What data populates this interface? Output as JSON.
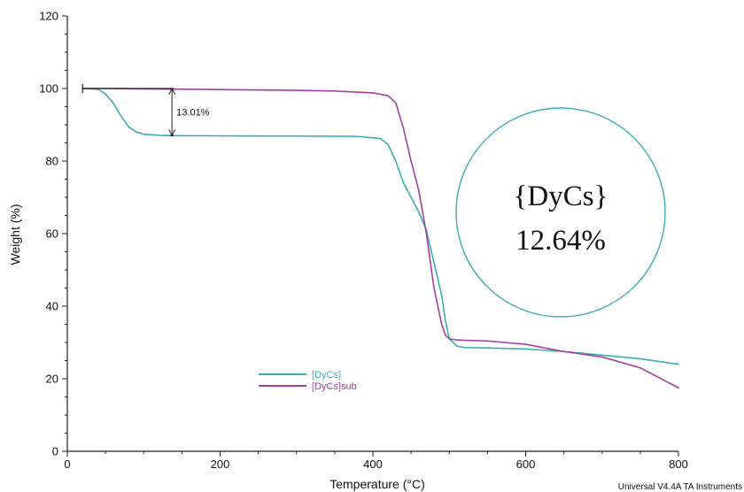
{
  "chart_data": {
    "type": "line",
    "title": "",
    "xlabel": "Temperature (°C)",
    "ylabel": "Weight (%)",
    "xlim": [
      0,
      800
    ],
    "ylim": [
      0,
      120
    ],
    "xticks": [
      0,
      200,
      400,
      600,
      800
    ],
    "yticks": [
      0,
      20,
      40,
      60,
      80,
      100,
      120
    ],
    "grid": false,
    "legend_position": "lower-left",
    "series": [
      {
        "name": "[DyCs]",
        "color": "#3aadb0",
        "x": [
          20,
          40,
          50,
          60,
          70,
          80,
          90,
          100,
          120,
          140,
          200,
          300,
          380,
          410,
          420,
          430,
          440,
          450,
          460,
          470,
          480,
          490,
          495,
          500,
          510,
          520,
          550,
          600,
          650,
          700,
          750,
          800
        ],
        "y": [
          100,
          99.8,
          98.5,
          96,
          92.5,
          89.5,
          88,
          87.4,
          87.1,
          87,
          86.95,
          86.9,
          86.8,
          86.2,
          84.5,
          80,
          74,
          70,
          66,
          61,
          52,
          43,
          36,
          31,
          29,
          28.6,
          28.5,
          28.2,
          27.5,
          26.5,
          25.5,
          24
        ]
      },
      {
        "name": "[DyCs]sub",
        "color": "#a33ea8",
        "x": [
          20,
          50,
          100,
          150,
          200,
          300,
          350,
          400,
          420,
          430,
          440,
          450,
          460,
          470,
          480,
          490,
          495,
          500,
          510,
          520,
          550,
          600,
          650,
          700,
          750,
          800
        ],
        "y": [
          100,
          100,
          99.9,
          99.8,
          99.7,
          99.5,
          99.3,
          98.8,
          98,
          96,
          89,
          80,
          72,
          60,
          45,
          35,
          32,
          31,
          30.7,
          30.6,
          30.4,
          29.5,
          27.5,
          26,
          23,
          17.5
        ]
      }
    ],
    "annotations": {
      "mass_loss_label": "13.01%",
      "mass_loss_from": 100,
      "mass_loss_to": 87,
      "mass_loss_x": 137,
      "circle_line1": "{DyCs}",
      "circle_line2": "12.64%",
      "circle_color": "#3aadb0"
    }
  },
  "footer": "Universal V4.4A TA Instruments"
}
